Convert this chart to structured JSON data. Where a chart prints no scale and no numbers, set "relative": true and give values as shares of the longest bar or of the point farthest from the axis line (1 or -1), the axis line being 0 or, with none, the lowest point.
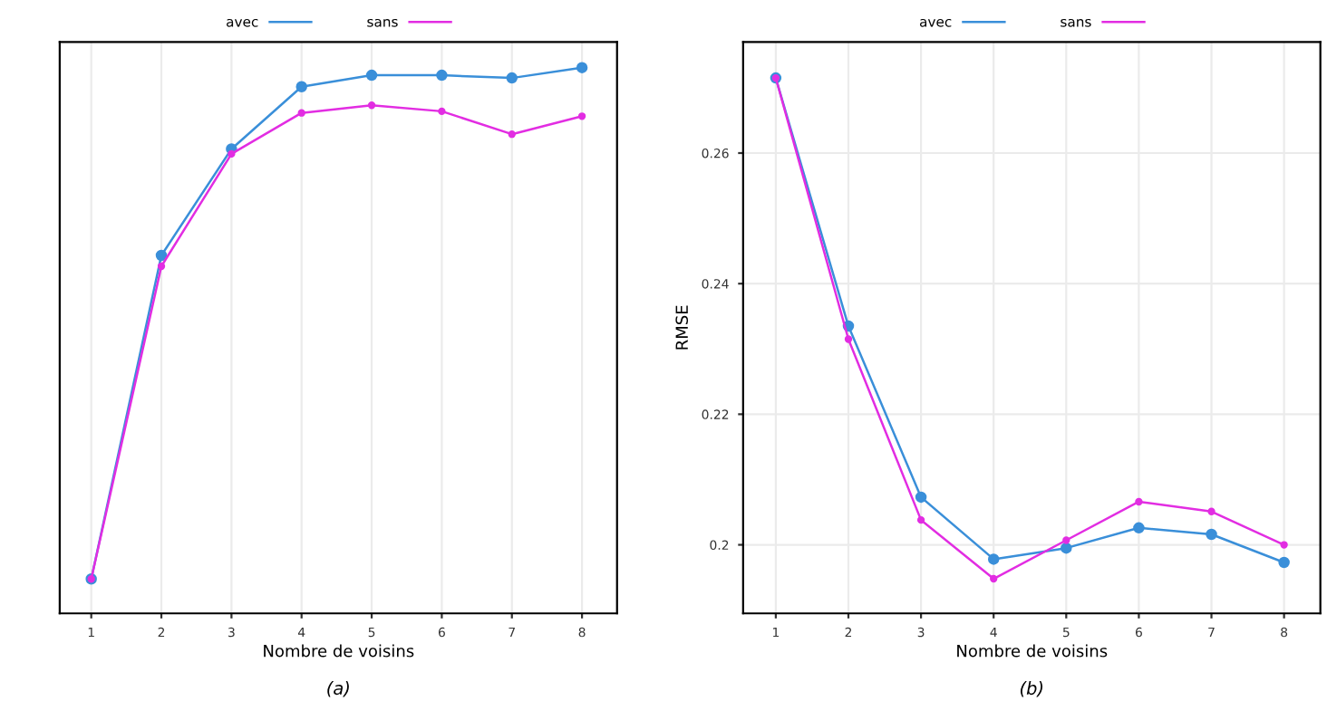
{
  "chart_data": [
    {
      "type": "line",
      "relative": true,
      "xlabel": "Nombre de voisins",
      "annotations": [
        "(a)"
      ],
      "xlim": [
        0.55,
        8.5
      ],
      "xticks": [
        1,
        2,
        3,
        4,
        5,
        6,
        7,
        8
      ],
      "grid": true,
      "legend": "top",
      "marker": "circle",
      "line_style": "solid",
      "series": [
        {
          "name": "avec",
          "color": "#3a8fd9",
          "x": [
            1,
            2,
            3,
            4,
            5,
            6,
            7,
            8
          ],
          "values": [
            0.063,
            0.656,
            0.851,
            0.965,
            0.986,
            0.986,
            0.981,
            1.0
          ]
        },
        {
          "name": "sans",
          "color": "#e22de2",
          "x": [
            1,
            2,
            3,
            4,
            5,
            6,
            7,
            8
          ],
          "values": [
            0.063,
            0.636,
            0.842,
            0.917,
            0.931,
            0.92,
            0.878,
            0.911
          ]
        }
      ]
    },
    {
      "type": "line",
      "xlabel": "Nombre de voisins",
      "ylabel": "RMSE",
      "annotations": [
        "(b)"
      ],
      "xlim": [
        0.55,
        8.5
      ],
      "xticks": [
        1,
        2,
        3,
        4,
        5,
        6,
        7,
        8
      ],
      "ylim": [
        0.1895,
        0.277
      ],
      "yticks": [
        0.2,
        0.22,
        0.24,
        0.26
      ],
      "grid": true,
      "legend": "top",
      "marker": "circle",
      "line_style": "solid",
      "series": [
        {
          "name": "avec",
          "color": "#3a8fd9",
          "x": [
            1,
            2,
            3,
            4,
            5,
            6,
            7,
            8
          ],
          "values": [
            0.2715,
            0.2335,
            0.2073,
            0.1978,
            0.1995,
            0.2026,
            0.2016,
            0.1973
          ]
        },
        {
          "name": "sans",
          "color": "#e22de2",
          "x": [
            1,
            2,
            3,
            4,
            5,
            6,
            7,
            8
          ],
          "values": [
            0.2715,
            0.2315,
            0.2038,
            0.1948,
            0.2007,
            0.2066,
            0.2051,
            0.2
          ]
        }
      ]
    }
  ]
}
